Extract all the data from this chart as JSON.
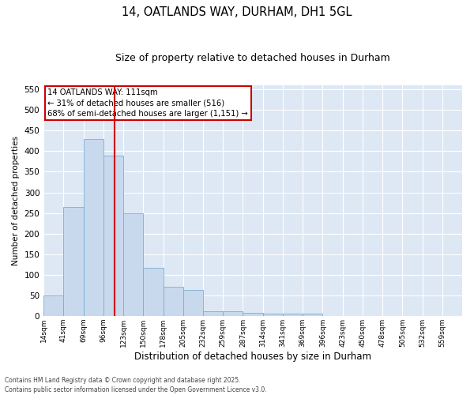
{
  "title": "14, OATLANDS WAY, DURHAM, DH1 5GL",
  "subtitle": "Size of property relative to detached houses in Durham",
  "xlabel": "Distribution of detached houses by size in Durham",
  "ylabel": "Number of detached properties",
  "annotation_line1": "14 OATLANDS WAY: 111sqm",
  "annotation_line2": "← 31% of detached houses are smaller (516)",
  "annotation_line3": "68% of semi-detached houses are larger (1,151) →",
  "bin_labels": [
    "14sqm",
    "41sqm",
    "69sqm",
    "96sqm",
    "123sqm",
    "150sqm",
    "178sqm",
    "205sqm",
    "232sqm",
    "259sqm",
    "287sqm",
    "314sqm",
    "341sqm",
    "369sqm",
    "396sqm",
    "423sqm",
    "450sqm",
    "478sqm",
    "505sqm",
    "532sqm",
    "559sqm"
  ],
  "bar_values": [
    50,
    265,
    430,
    390,
    250,
    117,
    70,
    62,
    12,
    12,
    8,
    5,
    5,
    5,
    0,
    0,
    0,
    0,
    0,
    0,
    0
  ],
  "bar_color": "#c8d9ee",
  "bar_edge_color": "#7aadd4",
  "vline_color": "#cc0000",
  "vline_bin_index": 3,
  "ylim": [
    0,
    560
  ],
  "yticks": [
    0,
    50,
    100,
    150,
    200,
    250,
    300,
    350,
    400,
    450,
    500,
    550
  ],
  "bg_color": "#dde8f4",
  "grid_color": "#ffffff",
  "annotation_box_color": "#cc0000",
  "footer_line1": "Contains HM Land Registry data © Crown copyright and database right 2025.",
  "footer_line2": "Contains public sector information licensed under the Open Government Licence v3.0."
}
